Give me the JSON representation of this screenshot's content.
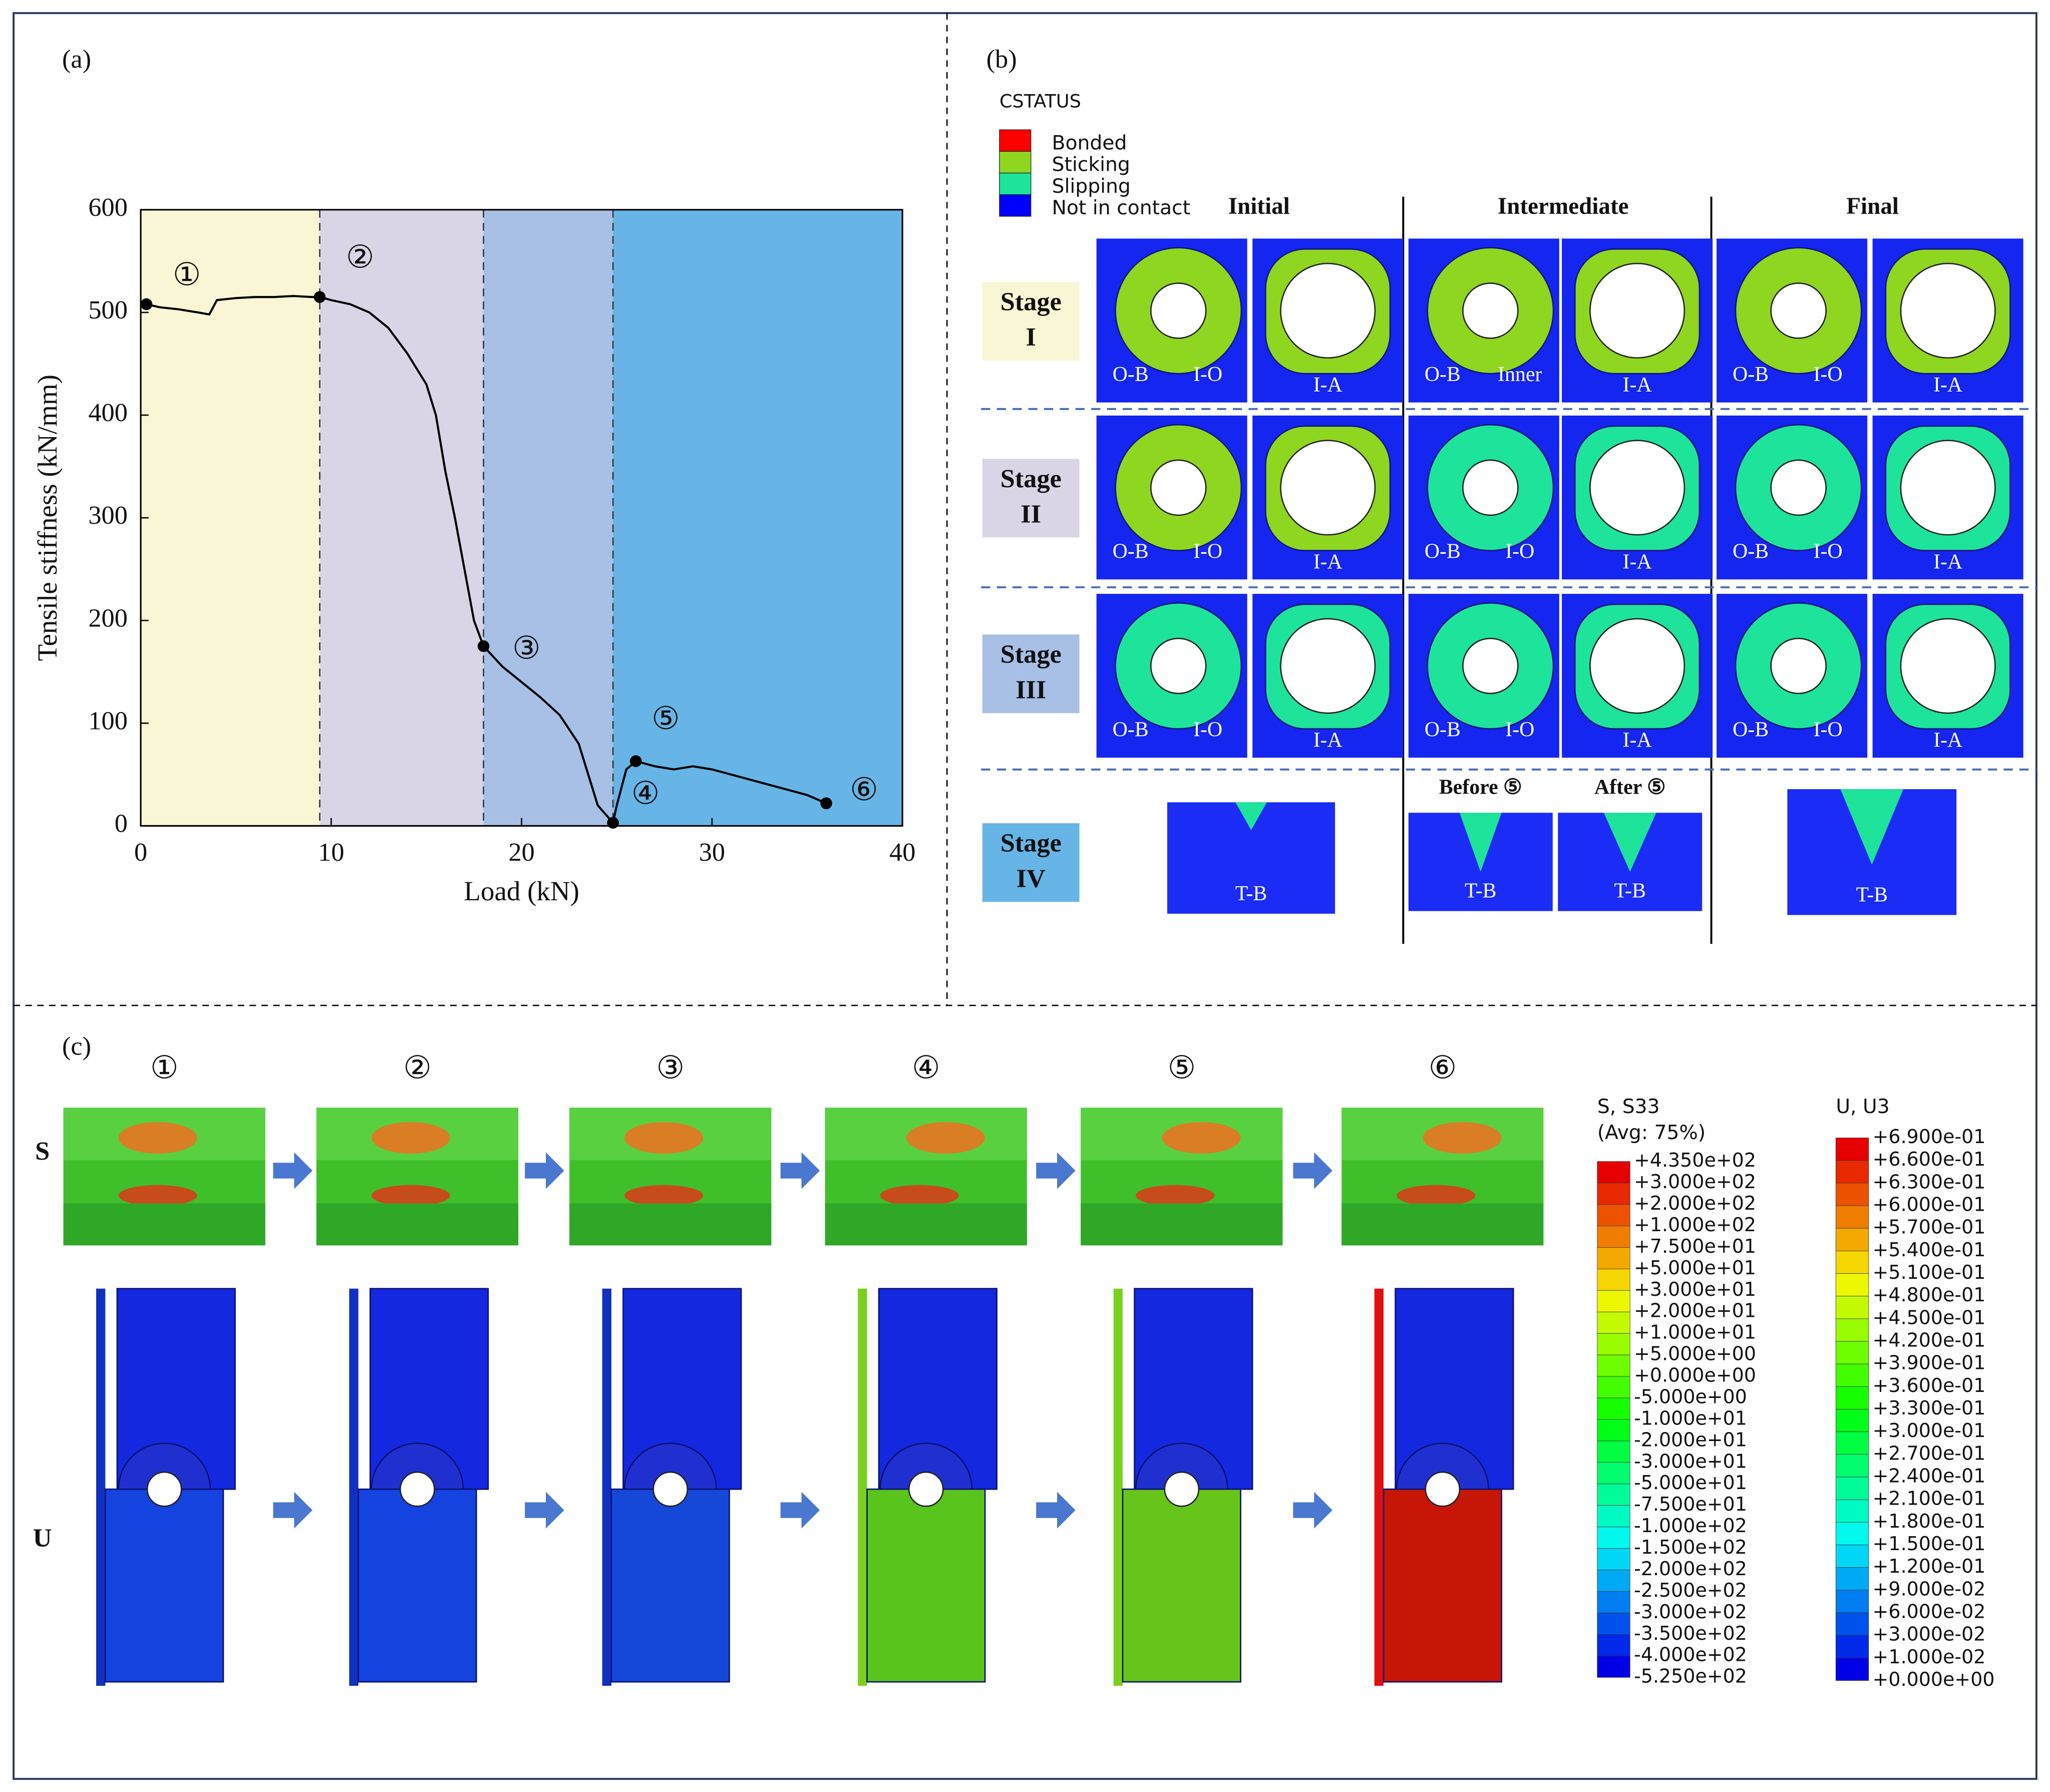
{
  "panel_labels": [
    "(a)",
    "(b)",
    "(c)"
  ],
  "chart_data": {
    "type": "line",
    "x_label": "Load (kN)",
    "y_label": "Tensile stiffness (kN/mm)",
    "xlim": [
      0,
      40
    ],
    "ylim": [
      0,
      600
    ],
    "xticks": [
      0,
      10,
      20,
      30,
      40
    ],
    "yticks": [
      0,
      100,
      200,
      300,
      400,
      500,
      600
    ],
    "stage_bounds": [
      9.4,
      18,
      24.8
    ],
    "stage_colors": [
      "#f8f6d4",
      "#d9d5e6",
      "#a8bfe6",
      "#66b5e6"
    ],
    "series": [
      {
        "name": "Tensile stiffness",
        "color": "#000000",
        "x": [
          0.3,
          1,
          2,
          3,
          3.6,
          4,
          5,
          6,
          7,
          8,
          9,
          9.4,
          10,
          11,
          12,
          13,
          14,
          15,
          15.5,
          16,
          16.5,
          17,
          17.5,
          18,
          19,
          20,
          21,
          22,
          23,
          23.5,
          24,
          24.8,
          25,
          25.5,
          26,
          27,
          28,
          29,
          30,
          31,
          32,
          33,
          34,
          35,
          36
        ],
        "values": [
          508,
          505,
          503,
          500,
          498,
          512,
          514,
          515,
          515,
          516,
          515,
          515,
          512,
          508,
          500,
          485,
          460,
          430,
          400,
          345,
          300,
          250,
          200,
          175,
          155,
          140,
          125,
          108,
          80,
          50,
          20,
          3,
          20,
          55,
          63,
          58,
          55,
          58,
          55,
          50,
          45,
          40,
          35,
          30,
          22
        ]
      }
    ],
    "points": {
      "labels": [
        "①",
        "②",
        "③",
        "④",
        "⑤",
        "⑥"
      ],
      "x": [
        0.3,
        9.4,
        18,
        24.8,
        26,
        36
      ],
      "values": [
        508,
        515,
        175,
        3,
        63,
        22
      ]
    }
  },
  "panel_b": {
    "legend_title": "CSTATUS",
    "legend": [
      {
        "label": "Bonded",
        "color": "#ff0000"
      },
      {
        "label": "Sticking",
        "color": "#8fd620"
      },
      {
        "label": "Slipping",
        "color": "#1ee39a"
      },
      {
        "label": "Not in contact",
        "color": "#0000ff"
      }
    ],
    "columns": [
      "Initial",
      "Intermediate",
      "Final"
    ],
    "stages": [
      [
        "Stage",
        "I"
      ],
      [
        "Stage",
        "II"
      ],
      [
        "Stage",
        "III"
      ],
      [
        "Stage",
        "IV"
      ]
    ],
    "tiles": [
      [
        [
          "O-B",
          "I-O"
        ],
        [
          "I-A"
        ],
        [
          "O-B",
          "Inner"
        ],
        [
          "I-A"
        ],
        [
          "O-B",
          "I-O"
        ],
        [
          "I-A"
        ]
      ],
      [
        [
          "O-B",
          "I-O"
        ],
        [
          "I-A"
        ],
        [
          "O-B",
          "I-O"
        ],
        [
          "I-A"
        ],
        [
          "O-B",
          "I-O"
        ],
        [
          "I-A"
        ]
      ],
      [
        [
          "O-B",
          "I-O"
        ],
        [
          "I-A"
        ],
        [
          "O-B",
          "I-O"
        ],
        [
          "I-A"
        ],
        [
          "O-B",
          "I-O"
        ],
        [
          "I-A"
        ]
      ]
    ],
    "stage_iv": [
      {
        "label": "T-B"
      },
      {
        "header": "Before ⑤",
        "label": "T-B"
      },
      {
        "header": "After ⑤",
        "label": "T-B"
      },
      {
        "label": "T-B"
      }
    ]
  },
  "panel_c": {
    "steps": [
      "①",
      "②",
      "③",
      "④",
      "⑤",
      "⑥"
    ],
    "rows": [
      "S",
      "U"
    ],
    "s_legend": {
      "title": [
        "S, S33",
        "(Avg: 75%)"
      ],
      "labels": [
        "+4.350e+02",
        "+3.000e+02",
        "+2.000e+02",
        "+1.000e+02",
        "+7.500e+01",
        "+5.000e+01",
        "+3.000e+01",
        "+2.000e+01",
        "+1.000e+01",
        "+5.000e+00",
        "+0.000e+00",
        "-5.000e+00",
        "-1.000e+01",
        "-2.000e+01",
        "-3.000e+01",
        "-5.000e+01",
        "-7.500e+01",
        "-1.000e+02",
        "-1.500e+02",
        "-2.000e+02",
        "-2.500e+02",
        "-3.000e+02",
        "-3.500e+02",
        "-4.000e+02",
        "-5.250e+02"
      ]
    },
    "u_legend": {
      "title": [
        "U, U3"
      ],
      "labels": [
        "+6.900e-01",
        "+6.600e-01",
        "+6.300e-01",
        "+6.000e-01",
        "+5.700e-01",
        "+5.400e-01",
        "+5.100e-01",
        "+4.800e-01",
        "+4.500e-01",
        "+4.200e-01",
        "+3.900e-01",
        "+3.600e-01",
        "+3.300e-01",
        "+3.000e-01",
        "+2.700e-01",
        "+2.400e-01",
        "+2.100e-01",
        "+1.800e-01",
        "+1.500e-01",
        "+1.200e-01",
        "+9.000e-02",
        "+6.000e-02",
        "+3.000e-02",
        "+1.000e-02",
        "+0.000e+00"
      ]
    }
  }
}
